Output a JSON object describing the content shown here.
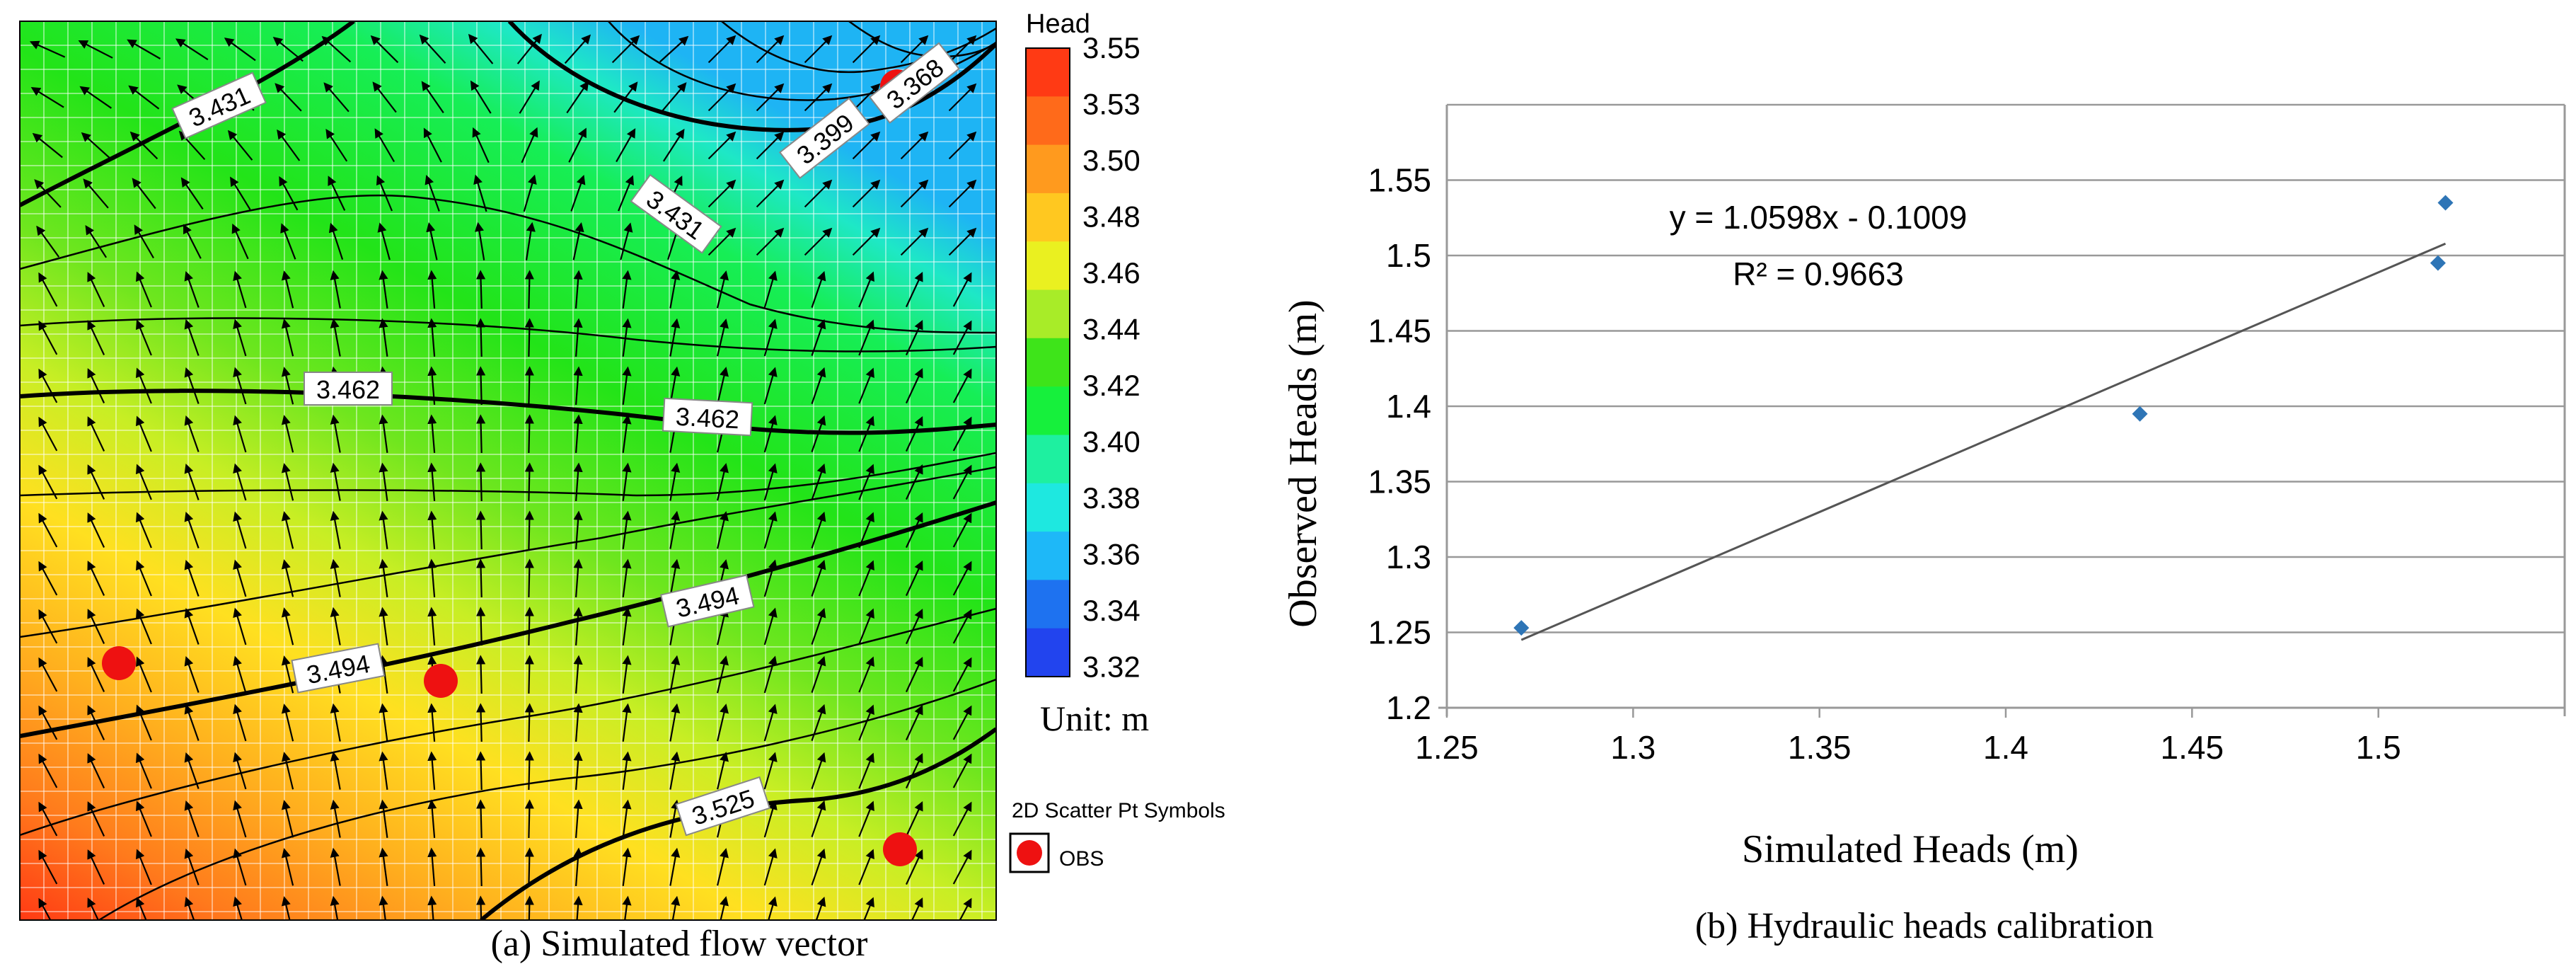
{
  "chart_data": [
    {
      "type": "heatmap",
      "caption": "(a) Simulated flow vector",
      "legend": {
        "title": "Head",
        "values": [
          3.55,
          3.53,
          3.5,
          3.48,
          3.46,
          3.44,
          3.42,
          3.4,
          3.38,
          3.36,
          3.34,
          3.32
        ],
        "labels": [
          "3.55",
          "3.53",
          "3.50",
          "3.48",
          "3.46",
          "3.44",
          "3.42",
          "3.40",
          "3.38",
          "3.36",
          "3.34",
          "3.32"
        ],
        "colors": [
          "#ff3a14",
          "#ff6a1a",
          "#ff9a1e",
          "#ffc820",
          "#eaf020",
          "#a8ec28",
          "#3ee41a",
          "#16f03c",
          "#1ef0a0",
          "#1ee8e0",
          "#1eb8f8",
          "#1e72f0",
          "#2244ee"
        ]
      },
      "unit_label": "Unit: m",
      "contour_labels": [
        "3.431",
        "3.368",
        "3.399",
        "3.431",
        "3.462",
        "3.462",
        "3.494",
        "3.494",
        "3.525"
      ],
      "scatter_legend": {
        "title": "2D Scatter Pt Symbols",
        "item": "OBS"
      }
    },
    {
      "type": "scatter",
      "caption": "(b) Hydraulic heads calibration",
      "xlabel": "Simulated Heads (m)",
      "ylabel": "Observed Heads (m)",
      "xlim": [
        1.25,
        1.55
      ],
      "ylim": [
        1.2,
        1.6
      ],
      "x_ticks": [
        "1.25",
        "1.3",
        "1.35",
        "1.4",
        "1.45",
        "1.5"
      ],
      "y_ticks": [
        "1.2",
        "1.25",
        "1.3",
        "1.35",
        "1.4",
        "1.45",
        "1.5",
        "1.55"
      ],
      "points": [
        {
          "x": 1.27,
          "y": 1.253
        },
        {
          "x": 1.436,
          "y": 1.395
        },
        {
          "x": 1.516,
          "y": 1.495
        },
        {
          "x": 1.518,
          "y": 1.535
        }
      ],
      "trendline": {
        "slope": 1.0598,
        "intercept": -0.1009,
        "x_from": 1.27,
        "x_to": 1.518
      },
      "equation": "y = 1.0598x - 0.1009",
      "r_squared_text": "R² = 0.9663",
      "point_color": "#2e75b6"
    }
  ]
}
